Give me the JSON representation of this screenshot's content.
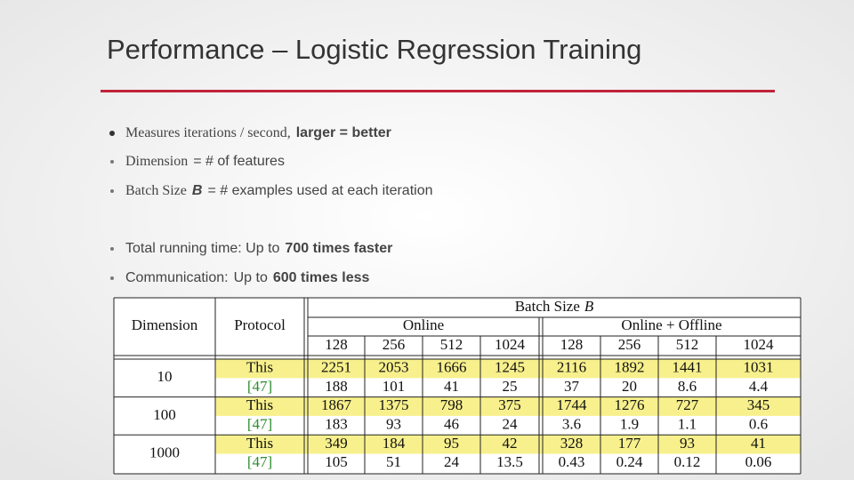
{
  "title": "Performance – Logistic Regression Training",
  "bullets": [
    [
      {
        "text": "Measures iterations / second,",
        "style": "serif"
      },
      {
        "text": "larger = better",
        "style": "bold"
      }
    ],
    [
      {
        "text": "Dimension",
        "style": "serif"
      },
      {
        "text": "= # of features",
        "style": "sans"
      }
    ],
    [
      {
        "text": "Batch Size",
        "style": "serif"
      },
      {
        "text": "B",
        "style": "italic"
      },
      {
        "text": "= # examples used at each iteration",
        "style": "sans"
      }
    ],
    [
      {
        "text": "Total running time: Up to",
        "style": "sans"
      },
      {
        "text": "700 times faster",
        "style": "bold"
      }
    ],
    [
      {
        "text": "Communication:",
        "style": "sans"
      },
      {
        "text": "Up to",
        "style": "sans"
      },
      {
        "text": "600 times less",
        "style": "bold"
      }
    ]
  ],
  "table": {
    "header": {
      "dimension": "Dimension",
      "protocol": "Protocol",
      "batch": [
        {
          "text": "Batch Size",
          "style": "tserif"
        },
        {
          "text": "B",
          "style": "titalic"
        }
      ],
      "groups": [
        "Online",
        "Online + Offline"
      ],
      "sizes": [
        128,
        256,
        512,
        1024,
        128,
        256,
        512,
        1024
      ]
    },
    "highlight_color": "#f7f08c",
    "rows": [
      {
        "dimension": 10,
        "entries": [
          {
            "protocol": "This",
            "highlight": true,
            "values": [
              2251,
              2053,
              1666,
              1245,
              2116,
              1892,
              1441,
              1031
            ]
          },
          {
            "protocol": "[47]",
            "highlight": false,
            "values": [
              188,
              101,
              41,
              25,
              37,
              20,
              8.6,
              4.4
            ]
          }
        ]
      },
      {
        "dimension": 100,
        "entries": [
          {
            "protocol": "This",
            "highlight": true,
            "values": [
              1867,
              1375,
              798,
              375,
              1744,
              1276,
              727,
              345
            ]
          },
          {
            "protocol": "[47]",
            "highlight": false,
            "values": [
              183,
              93,
              46,
              24,
              3.6,
              1.9,
              1.1,
              0.6
            ]
          }
        ]
      },
      {
        "dimension": 1000,
        "entries": [
          {
            "protocol": "This",
            "highlight": true,
            "values": [
              349,
              184,
              95,
              42,
              328,
              177,
              93,
              41
            ]
          },
          {
            "protocol": "[47]",
            "highlight": false,
            "values": [
              105,
              51,
              24,
              13.5,
              0.43,
              0.24,
              0.12,
              0.06
            ]
          }
        ]
      }
    ]
  }
}
